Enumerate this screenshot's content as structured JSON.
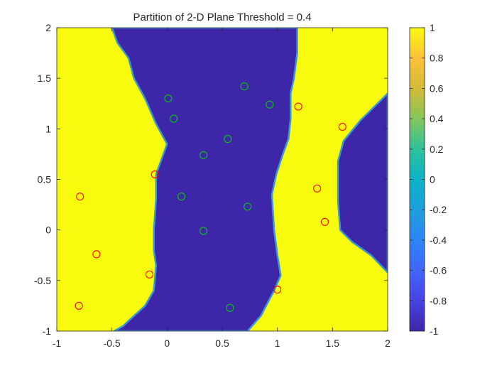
{
  "chart_data": {
    "type": "heatmap",
    "title": "Partition of 2-D Plane Threshold = 0.4",
    "xlabel": "",
    "ylabel": "",
    "xlim": [
      -1,
      2
    ],
    "ylim": [
      -1,
      2
    ],
    "x_ticks": [
      "-1",
      "-0.5",
      "0",
      "0.5",
      "1",
      "1.5",
      "2"
    ],
    "x_tick_values": [
      -1,
      -0.5,
      0,
      0.5,
      1,
      1.5,
      2
    ],
    "y_ticks": [
      "-1",
      "-0.5",
      "0",
      "0.5",
      "1",
      "1.5",
      "2"
    ],
    "y_tick_values": [
      -1,
      -0.5,
      0,
      0.5,
      1,
      1.5,
      2
    ],
    "colorbar": {
      "range": [
        -1,
        1
      ],
      "ticks": [
        "-1",
        "-0.8",
        "-0.6",
        "-0.4",
        "-0.2",
        "0",
        "0.2",
        "0.4",
        "0.6",
        "0.8",
        "1"
      ],
      "tick_values": [
        -1,
        -0.8,
        -0.6,
        -0.4,
        -0.2,
        0,
        0.2,
        0.4,
        0.6,
        0.8,
        1
      ]
    },
    "colors": {
      "high": "#F9FB0E",
      "low": "#3E26A8",
      "edge": "#3A96D6",
      "red_marker": "#FF0000",
      "green_marker": "#00CC00"
    },
    "regions": {
      "default_value": 1,
      "low_value": -1,
      "low_region_boundaries": [
        {
          "description": "central band",
          "left": [
            [
              -0.48,
              -1.0
            ],
            [
              -0.4,
              -0.95
            ],
            [
              -0.3,
              -0.85
            ],
            [
              -0.2,
              -0.75
            ],
            [
              -0.12,
              -0.6
            ],
            [
              -0.1,
              -0.35
            ],
            [
              -0.12,
              -0.2
            ],
            [
              -0.12,
              0.0
            ],
            [
              -0.1,
              0.3
            ],
            [
              -0.1,
              0.55
            ],
            [
              -0.05,
              0.7
            ],
            [
              0.0,
              0.85
            ],
            [
              -0.1,
              1.05
            ],
            [
              -0.2,
              1.3
            ],
            [
              -0.3,
              1.5
            ],
            [
              -0.35,
              1.7
            ],
            [
              -0.45,
              1.85
            ],
            [
              -0.5,
              2.0
            ]
          ],
          "right": [
            [
              0.73,
              -1.0
            ],
            [
              0.85,
              -0.85
            ],
            [
              0.97,
              -0.6
            ],
            [
              1.03,
              -0.45
            ],
            [
              1.0,
              -0.25
            ],
            [
              0.97,
              0.0
            ],
            [
              0.95,
              0.35
            ],
            [
              0.99,
              0.55
            ],
            [
              1.05,
              0.75
            ],
            [
              1.1,
              0.9
            ],
            [
              1.12,
              1.1
            ],
            [
              1.12,
              1.35
            ],
            [
              1.15,
              1.5
            ],
            [
              1.18,
              1.75
            ],
            [
              1.18,
              2.0
            ]
          ]
        },
        {
          "description": "right region",
          "polygon": [
            [
              2.0,
              1.35
            ],
            [
              1.88,
              1.22
            ],
            [
              1.75,
              1.08
            ],
            [
              1.6,
              0.88
            ],
            [
              1.55,
              0.68
            ],
            [
              1.55,
              0.28
            ],
            [
              1.57,
              0.0
            ],
            [
              1.68,
              -0.12
            ],
            [
              1.85,
              -0.25
            ],
            [
              2.0,
              -0.42
            ]
          ]
        }
      ]
    },
    "points": [
      {
        "x": -0.79,
        "y": 0.33,
        "class": "red"
      },
      {
        "x": -0.64,
        "y": -0.24,
        "class": "red"
      },
      {
        "x": -0.16,
        "y": -0.44,
        "class": "red"
      },
      {
        "x": -0.8,
        "y": -0.75,
        "class": "red"
      },
      {
        "x": -0.11,
        "y": 0.55,
        "class": "red"
      },
      {
        "x": 1.19,
        "y": 1.22,
        "class": "red"
      },
      {
        "x": 1.59,
        "y": 1.02,
        "class": "red"
      },
      {
        "x": 1.36,
        "y": 0.41,
        "class": "red"
      },
      {
        "x": 1.43,
        "y": 0.08,
        "class": "red"
      },
      {
        "x": 1.0,
        "y": -0.59,
        "class": "red"
      },
      {
        "x": 0.01,
        "y": 1.3,
        "class": "green"
      },
      {
        "x": 0.06,
        "y": 1.1,
        "class": "green"
      },
      {
        "x": 0.7,
        "y": 1.42,
        "class": "green"
      },
      {
        "x": 0.93,
        "y": 1.24,
        "class": "green"
      },
      {
        "x": 0.55,
        "y": 0.9,
        "class": "green"
      },
      {
        "x": 0.33,
        "y": 0.74,
        "class": "green"
      },
      {
        "x": 0.13,
        "y": 0.33,
        "class": "green"
      },
      {
        "x": 0.73,
        "y": 0.23,
        "class": "green"
      },
      {
        "x": 0.33,
        "y": -0.01,
        "class": "green"
      },
      {
        "x": 0.57,
        "y": -0.77,
        "class": "green"
      }
    ]
  }
}
